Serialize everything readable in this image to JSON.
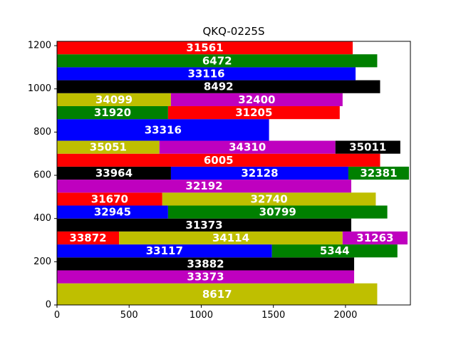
{
  "chart_data": {
    "type": "bar",
    "orientation": "horizontal",
    "stacked": true,
    "title": "QKQ-0225S",
    "xlabel": "",
    "ylabel": "",
    "xlim": [
      0,
      2450
    ],
    "ylim": [
      0,
      1200
    ],
    "xticks": [
      0,
      500,
      1000,
      1500,
      2000
    ],
    "yticks": [
      0,
      200,
      400,
      600,
      800,
      1000,
      1200
    ],
    "grid": false,
    "colors": {
      "y": "#bfbf00",
      "m": "#bf00bf",
      "k": "#000000",
      "b": "#0000ff",
      "g": "#008000",
      "r": "#ff0000"
    },
    "bars": [
      {
        "y0": 0,
        "height": 100,
        "segments": [
          {
            "label": "8617",
            "value": 2220,
            "color": "y"
          }
        ]
      },
      {
        "y0": 100,
        "height": 60,
        "segments": [
          {
            "label": "33373",
            "value": 2060,
            "color": "m"
          }
        ]
      },
      {
        "y0": 160,
        "height": 60,
        "segments": [
          {
            "label": "33882",
            "value": 2060,
            "color": "k"
          }
        ]
      },
      {
        "y0": 220,
        "height": 60,
        "segments": [
          {
            "label": "33117",
            "value": 1490,
            "color": "b"
          },
          {
            "label": "5344",
            "value": 870,
            "color": "g"
          }
        ]
      },
      {
        "y0": 280,
        "height": 60,
        "segments": [
          {
            "label": "33872",
            "value": 430,
            "color": "r"
          },
          {
            "label": "34114",
            "value": 1550,
            "color": "y"
          },
          {
            "label": "31263",
            "value": 450,
            "color": "m"
          }
        ]
      },
      {
        "y0": 340,
        "height": 60,
        "segments": [
          {
            "label": "31373",
            "value": 2040,
            "color": "k"
          }
        ]
      },
      {
        "y0": 400,
        "height": 60,
        "segments": [
          {
            "label": "32945",
            "value": 770,
            "color": "b"
          },
          {
            "label": "30799",
            "value": 1520,
            "color": "g"
          }
        ]
      },
      {
        "y0": 460,
        "height": 60,
        "segments": [
          {
            "label": "31670",
            "value": 730,
            "color": "r"
          },
          {
            "label": "32740",
            "value": 1480,
            "color": "y"
          }
        ]
      },
      {
        "y0": 520,
        "height": 60,
        "segments": [
          {
            "label": "32192",
            "value": 2040,
            "color": "m"
          }
        ]
      },
      {
        "y0": 580,
        "height": 60,
        "segments": [
          {
            "label": "33964",
            "value": 790,
            "color": "k"
          },
          {
            "label": "32128",
            "value": 1230,
            "color": "b"
          },
          {
            "label": "32381",
            "value": 420,
            "color": "g"
          }
        ]
      },
      {
        "y0": 640,
        "height": 60,
        "segments": [
          {
            "label": "6005",
            "value": 2240,
            "color": "r"
          }
        ]
      },
      {
        "y0": 700,
        "height": 60,
        "segments": [
          {
            "label": "35051",
            "value": 710,
            "color": "y"
          },
          {
            "label": "34310",
            "value": 1220,
            "color": "m"
          },
          {
            "label": "35011",
            "value": 450,
            "color": "k"
          }
        ]
      },
      {
        "y0": 760,
        "height": 100,
        "segments": [
          {
            "label": "33316",
            "value": 1470,
            "color": "b"
          }
        ]
      },
      {
        "y0": 860,
        "height": 60,
        "segments": [
          {
            "label": "31920",
            "value": 770,
            "color": "g"
          },
          {
            "label": "31205",
            "value": 1190,
            "color": "r"
          }
        ]
      },
      {
        "y0": 920,
        "height": 60,
        "segments": [
          {
            "label": "34099",
            "value": 790,
            "color": "y"
          },
          {
            "label": "32400",
            "value": 1190,
            "color": "m"
          }
        ]
      },
      {
        "y0": 980,
        "height": 60,
        "segments": [
          {
            "label": "8492",
            "value": 2240,
            "color": "k"
          }
        ]
      },
      {
        "y0": 1040,
        "height": 60,
        "segments": [
          {
            "label": "33116",
            "value": 2070,
            "color": "b"
          }
        ]
      },
      {
        "y0": 1100,
        "height": 60,
        "segments": [
          {
            "label": "6472",
            "value": 2220,
            "color": "g"
          }
        ]
      },
      {
        "y0": 1160,
        "height": 60,
        "segments": [
          {
            "label": "31561",
            "value": 2050,
            "color": "r"
          }
        ]
      }
    ]
  }
}
